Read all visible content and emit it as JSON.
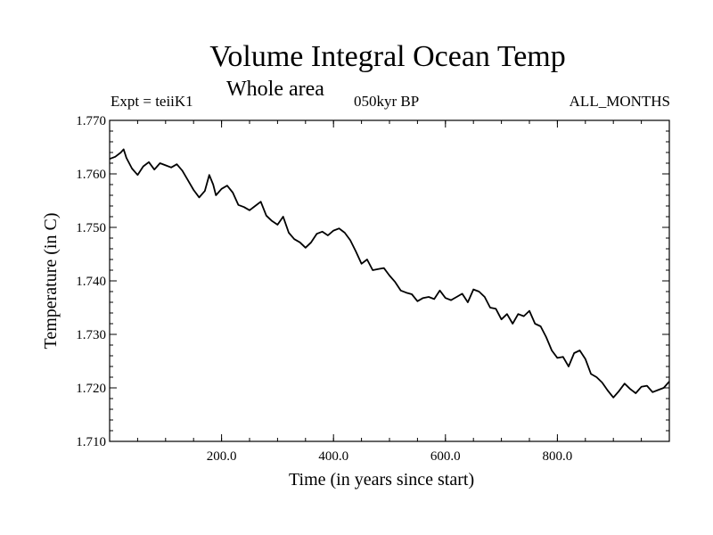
{
  "chart_data": {
    "type": "line",
    "title": "Volume Integral Ocean Temp",
    "subtitle": "Whole area",
    "header_left": "Expt = teiiK1",
    "header_center": "050kyr BP",
    "header_right": "ALL_MONTHS",
    "xlabel": "Time (in years since start)",
    "ylabel": "Temperature (in C)",
    "xlim": [
      0,
      1000
    ],
    "ylim": [
      1.71,
      1.77
    ],
    "x_ticks": [
      200.0,
      400.0,
      600.0,
      800.0
    ],
    "x_tick_labels": [
      "200.0",
      "400.0",
      "600.0",
      "800.0"
    ],
    "y_ticks": [
      1.71,
      1.72,
      1.73,
      1.74,
      1.75,
      1.76,
      1.77
    ],
    "y_tick_labels": [
      "1.710",
      "1.720",
      "1.730",
      "1.740",
      "1.750",
      "1.760",
      "1.770"
    ],
    "grid": false,
    "line_color": "#000000",
    "series": [
      {
        "x": [
          0,
          10,
          20,
          25,
          30,
          40,
          50,
          60,
          70,
          80,
          90,
          100,
          110,
          120,
          130,
          140,
          150,
          160,
          170,
          178,
          185,
          190,
          200,
          210,
          220,
          230,
          240,
          250,
          260,
          270,
          280,
          290,
          300,
          310,
          320,
          330,
          340,
          350,
          360,
          370,
          380,
          390,
          400,
          410,
          420,
          430,
          440,
          450,
          460,
          470,
          480,
          490,
          500,
          510,
          520,
          530,
          540,
          550,
          560,
          570,
          580,
          590,
          600,
          610,
          620,
          630,
          640,
          650,
          660,
          670,
          680,
          690,
          700,
          710,
          720,
          730,
          740,
          750,
          760,
          770,
          780,
          790,
          800,
          810,
          820,
          830,
          840,
          850,
          860,
          870,
          880,
          890,
          900,
          910,
          920,
          930,
          940,
          950,
          960,
          970,
          980,
          990,
          1000
        ],
        "values": [
          1.7628,
          1.7632,
          1.764,
          1.7646,
          1.763,
          1.761,
          1.7598,
          1.7614,
          1.7622,
          1.7608,
          1.762,
          1.7616,
          1.7612,
          1.7618,
          1.7606,
          1.7588,
          1.757,
          1.7556,
          1.7568,
          1.7598,
          1.758,
          1.756,
          1.7572,
          1.7578,
          1.7565,
          1.7542,
          1.7538,
          1.7532,
          1.754,
          1.7548,
          1.7522,
          1.7512,
          1.7505,
          1.752,
          1.749,
          1.7478,
          1.7472,
          1.7462,
          1.7472,
          1.7488,
          1.7492,
          1.7485,
          1.7494,
          1.7498,
          1.749,
          1.7476,
          1.7455,
          1.7432,
          1.744,
          1.742,
          1.7422,
          1.7424,
          1.741,
          1.7398,
          1.7382,
          1.7378,
          1.7375,
          1.7362,
          1.7368,
          1.737,
          1.7366,
          1.7382,
          1.7368,
          1.7364,
          1.737,
          1.7376,
          1.736,
          1.7384,
          1.738,
          1.737,
          1.735,
          1.7348,
          1.7328,
          1.7338,
          1.732,
          1.7338,
          1.7334,
          1.7344,
          1.732,
          1.7315,
          1.7295,
          1.727,
          1.7256,
          1.7258,
          1.724,
          1.7265,
          1.727,
          1.7254,
          1.7226,
          1.722,
          1.721,
          1.7195,
          1.7182,
          1.7194,
          1.7208,
          1.7198,
          1.719,
          1.7202,
          1.7204,
          1.7192,
          1.7196,
          1.72,
          1.7212
        ]
      }
    ]
  }
}
